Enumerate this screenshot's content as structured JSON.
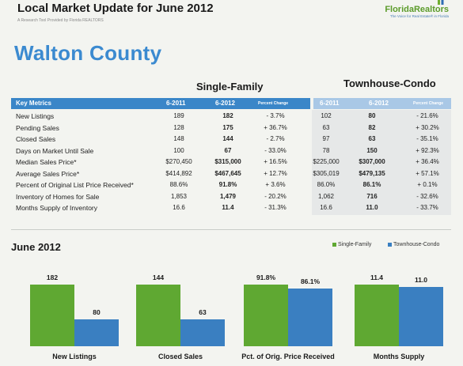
{
  "header": {
    "title": "Local Market Update for June 2012",
    "subtitle": "A Research Tool Provided by Florida REALTORS",
    "logo_main": "FloridaRealtors",
    "logo_sub": "The Voice for Real Estate® in Florida"
  },
  "county": "Walton County",
  "groups": {
    "single_family": "Single-Family",
    "townhouse_condo": "Townhouse-Condo"
  },
  "table": {
    "headers": {
      "key_metrics": "Key Metrics",
      "col_2011": "6-2011",
      "col_2012": "6-2012",
      "pct_change": "Percent Change"
    },
    "rows": [
      {
        "label": "New Listings",
        "sf": [
          "189",
          "182",
          "- 3.7%"
        ],
        "tc": [
          "102",
          "80",
          "- 21.6%"
        ]
      },
      {
        "label": "Pending Sales",
        "sf": [
          "128",
          "175",
          "+ 36.7%"
        ],
        "tc": [
          "63",
          "82",
          "+ 30.2%"
        ]
      },
      {
        "label": "Closed Sales",
        "sf": [
          "148",
          "144",
          "- 2.7%"
        ],
        "tc": [
          "97",
          "63",
          "- 35.1%"
        ]
      },
      {
        "label": "Days on Market Until Sale",
        "sf": [
          "100",
          "67",
          "- 33.0%"
        ],
        "tc": [
          "78",
          "150",
          "+ 92.3%"
        ]
      },
      {
        "label": "Median Sales Price*",
        "sf": [
          "$270,450",
          "$315,000",
          "+ 16.5%"
        ],
        "tc": [
          "$225,000",
          "$307,000",
          "+ 36.4%"
        ]
      },
      {
        "label": "Average Sales Price*",
        "sf": [
          "$414,892",
          "$467,645",
          "+ 12.7%"
        ],
        "tc": [
          "$305,019",
          "$479,135",
          "+ 57.1%"
        ]
      },
      {
        "label": "Percent of Original List Price Received*",
        "sf": [
          "88.6%",
          "91.8%",
          "+ 3.6%"
        ],
        "tc": [
          "86.0%",
          "86.1%",
          "+ 0.1%"
        ]
      },
      {
        "label": "Inventory of Homes for Sale",
        "sf": [
          "1,853",
          "1,479",
          "- 20.2%"
        ],
        "tc": [
          "1,062",
          "716",
          "- 32.6%"
        ]
      },
      {
        "label": "Months Supply of Inventory",
        "sf": [
          "16.6",
          "11.4",
          "- 31.3%"
        ],
        "tc": [
          "16.6",
          "11.0",
          "- 33.7%"
        ]
      }
    ]
  },
  "section_title": "June 2012",
  "legend": {
    "single": "Single-Family",
    "condo": "Townhouse-Condo"
  },
  "colors": {
    "green": "#5fa832",
    "blue": "#3a7fc1",
    "header_blue": "#3a86c8",
    "header_light": "#a9c8e6"
  },
  "chart_data": {
    "type": "bar",
    "categories": [
      "New Listings",
      "Closed Sales",
      "Pct. of Orig. Price Received",
      "Months Supply"
    ],
    "series": [
      {
        "name": "Single-Family",
        "values": [
          182,
          144,
          91.8,
          11.4
        ],
        "labels": [
          "182",
          "144",
          "91.8%",
          "11.4"
        ]
      },
      {
        "name": "Townhouse-Condo",
        "values": [
          80,
          63,
          86.1,
          11.0
        ],
        "labels": [
          "80",
          "63",
          "86.1%",
          "11.0"
        ]
      }
    ]
  }
}
